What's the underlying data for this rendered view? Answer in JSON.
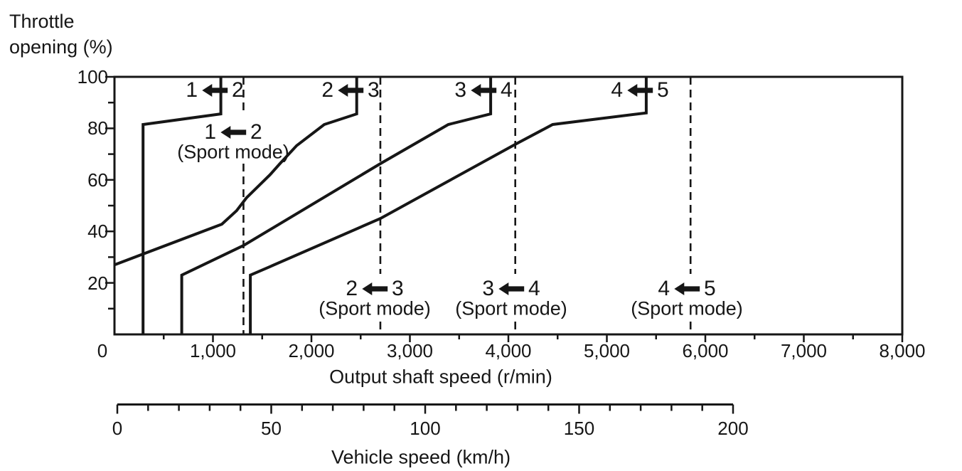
{
  "page": {
    "background": "#ffffff",
    "ink": "#161616"
  },
  "y_axis_title": {
    "line1": "Throttle",
    "line2": "opening (%)"
  },
  "chart_data": {
    "type": "line",
    "title": "",
    "x_axis": {
      "label": "Output shaft speed (r/min)",
      "range": [
        0,
        8000
      ],
      "major_tick_step": 1000,
      "minor_tick_step": 500,
      "tick_labels": [
        "0",
        "1,000",
        "2,000",
        "3,000",
        "4,000",
        "5,000",
        "6,000",
        "7,000",
        "8,000"
      ],
      "grid": false
    },
    "y_axis": {
      "label": "Throttle opening (%)",
      "range": [
        0,
        100
      ],
      "major_tick_step": 20,
      "minor_tick_step": 10,
      "tick_labels": [
        "20",
        "40",
        "60",
        "80",
        "100"
      ]
    },
    "x2_axis": {
      "label": "Vehicle speed (km/h)",
      "range": [
        0,
        200
      ],
      "major_tick_step": 50,
      "minor_tick_step": 10,
      "tick_labels": [
        "0",
        "50",
        "100",
        "150",
        "200"
      ]
    },
    "origin_label": "0",
    "series": [
      {
        "name": "1<-2 downshift",
        "points_rpm_pct": [
          [
            290,
            0
          ],
          [
            290,
            81.5
          ],
          [
            1080,
            85.6
          ],
          [
            1080,
            100
          ]
        ]
      },
      {
        "name": "2<-3 downshift",
        "points_rpm_pct": [
          [
            0,
            27
          ],
          [
            1090,
            42.8
          ],
          [
            1240,
            48
          ],
          [
            1340,
            53
          ],
          [
            1580,
            62
          ],
          [
            1680,
            66.3
          ],
          [
            1850,
            73.3
          ],
          [
            2130,
            81.5
          ],
          [
            2460,
            85.6
          ],
          [
            2460,
            100
          ]
        ]
      },
      {
        "name": "3<-4 downshift",
        "points_rpm_pct": [
          [
            683,
            0
          ],
          [
            683,
            23
          ],
          [
            1310,
            34.5
          ],
          [
            2700,
            66.3
          ],
          [
            3390,
            81.5
          ],
          [
            3820,
            85.6
          ],
          [
            3820,
            100
          ]
        ]
      },
      {
        "name": "4<-5 downshift",
        "points_rpm_pct": [
          [
            1380,
            0
          ],
          [
            1380,
            23
          ],
          [
            1560,
            26
          ],
          [
            2700,
            45
          ],
          [
            4080,
            74
          ],
          [
            4450,
            81.5
          ],
          [
            5400,
            86
          ],
          [
            5400,
            100
          ]
        ]
      }
    ],
    "sport_mode_downshift_lines_rpm": [
      1310,
      2700,
      4070,
      5850
    ],
    "annotations": {
      "normal_shift_labels": [
        {
          "to_gear": "1",
          "from_gear": "2"
        },
        {
          "to_gear": "2",
          "from_gear": "3"
        },
        {
          "to_gear": "3",
          "from_gear": "4"
        },
        {
          "to_gear": "4",
          "from_gear": "5"
        }
      ],
      "sport_shift_labels": [
        {
          "to_gear": "1",
          "from_gear": "2",
          "caption": "(Sport mode)"
        },
        {
          "to_gear": "2",
          "from_gear": "3",
          "caption": "(Sport mode)"
        },
        {
          "to_gear": "3",
          "from_gear": "4",
          "caption": "(Sport mode)"
        },
        {
          "to_gear": "4",
          "from_gear": "5",
          "caption": "(Sport mode)"
        }
      ]
    }
  }
}
